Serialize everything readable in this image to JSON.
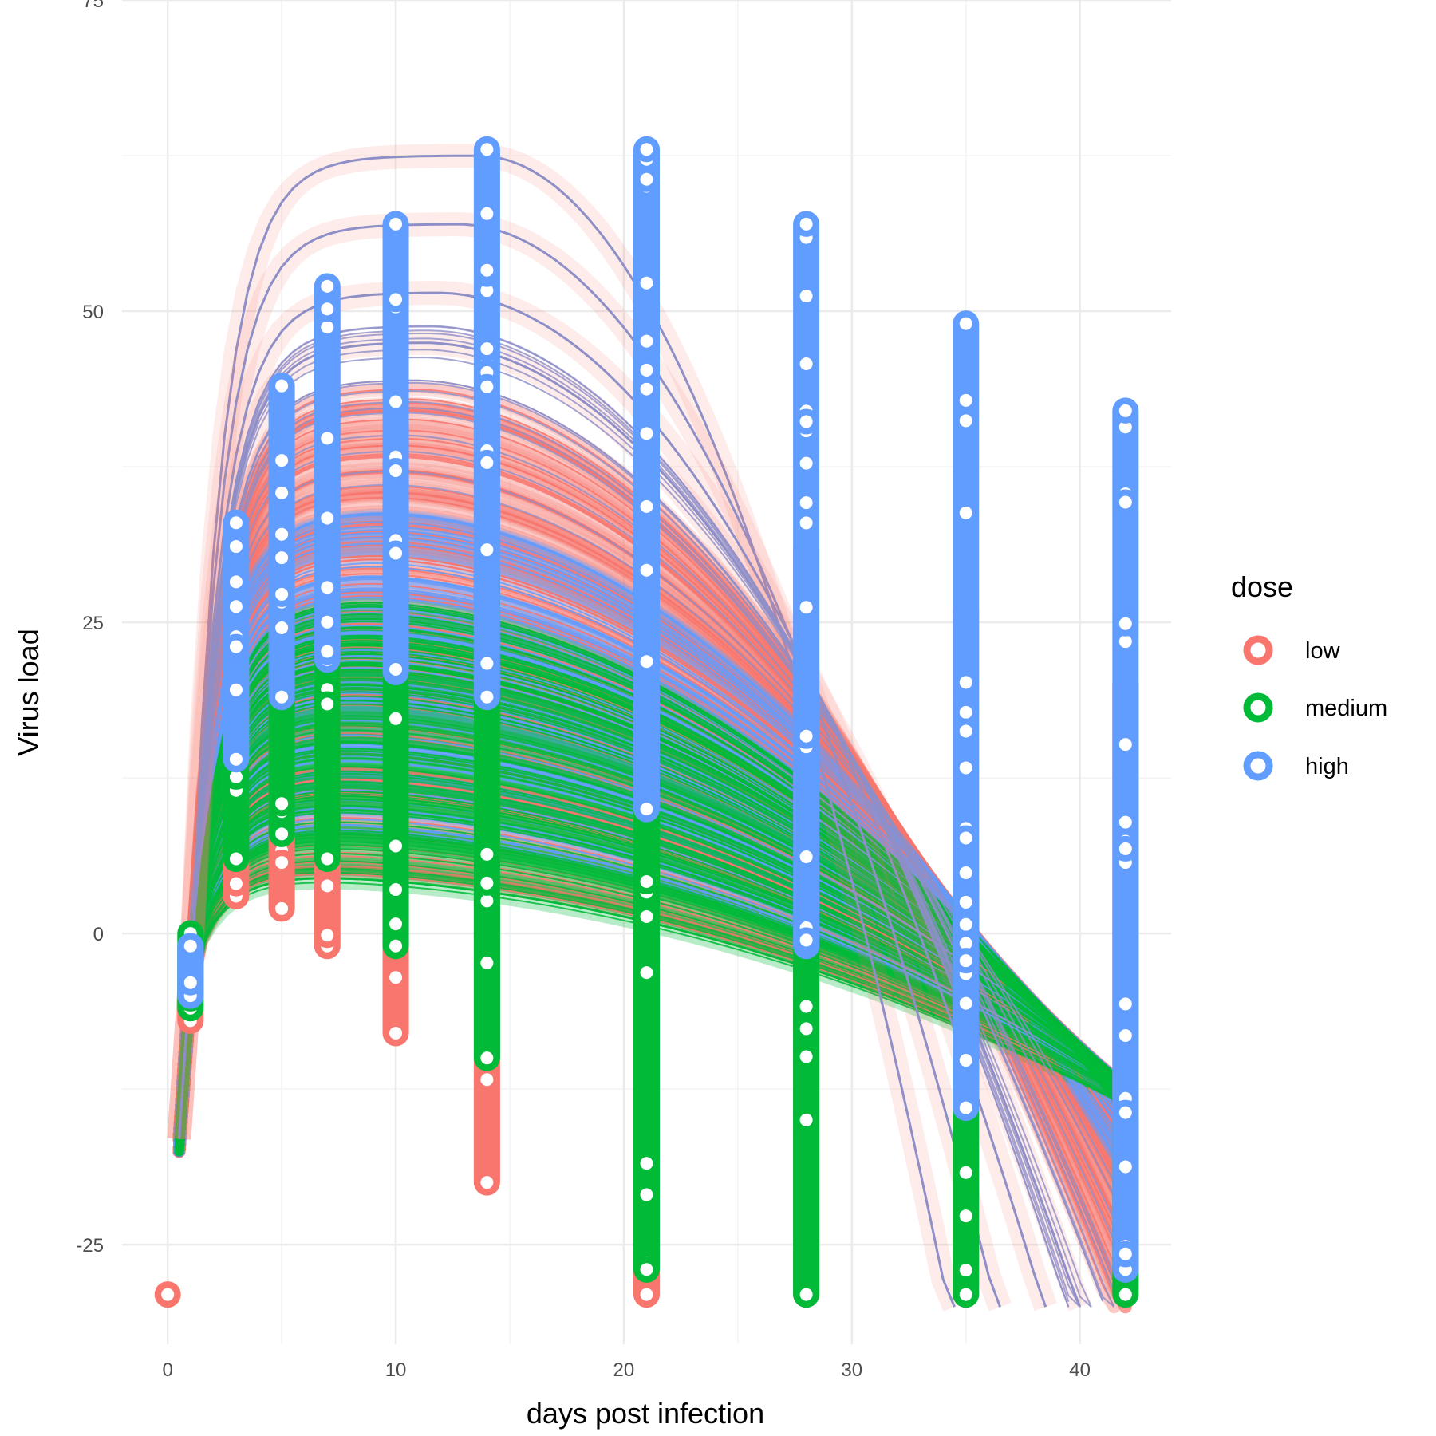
{
  "chart_data": {
    "type": "line",
    "title": "",
    "xlabel": "days post infection",
    "ylabel": "Virus load",
    "xlim": [
      -2,
      44
    ],
    "ylim": [
      -33,
      75
    ],
    "x_ticks": [
      0,
      10,
      20,
      30,
      40
    ],
    "x_tick_labels": [
      "0",
      "10",
      "20",
      "30",
      "40"
    ],
    "y_ticks": [
      -25,
      0,
      25,
      50,
      75
    ],
    "y_tick_labels": [
      "-25",
      "0",
      "25",
      "50",
      "75"
    ],
    "grid": true,
    "legend": {
      "title": "dose",
      "position": "right",
      "entries": [
        "low",
        "medium",
        "high"
      ]
    },
    "colors": {
      "low": "#F8766D",
      "medium": "#00BA38",
      "high": "#619CFF",
      "line_overlay": "#8F8FC8"
    },
    "series": [
      {
        "name": "low",
        "color": "#F8766D",
        "x": [
          0,
          1,
          3,
          5,
          7,
          10,
          14,
          21,
          28,
          35,
          42
        ],
        "y_min": [
          -29,
          -7,
          3,
          2,
          -1,
          -8,
          -20,
          -29,
          -29,
          -29,
          -29
        ],
        "y_max": [
          -29,
          -1,
          21,
          32,
          37,
          40,
          41,
          36,
          31,
          26,
          20
        ],
        "curve_peak_range": [
          5,
          44
        ]
      },
      {
        "name": "medium",
        "color": "#00BA38",
        "x": [
          1,
          3,
          5,
          7,
          10,
          14,
          21,
          28,
          35,
          42
        ],
        "y_min": [
          -6,
          6,
          8,
          6,
          -1,
          -10,
          -27,
          -29,
          -29,
          -29
        ],
        "y_max": [
          0,
          17,
          23,
          27,
          29,
          29,
          20,
          8,
          4,
          -15
        ],
        "curve_peak_range": [
          4,
          27
        ]
      },
      {
        "name": "high",
        "color": "#619CFF",
        "x": [
          1,
          3,
          5,
          7,
          10,
          14,
          21,
          28,
          35,
          42
        ],
        "y_min": [
          -5,
          14,
          19,
          22,
          21,
          19,
          10,
          -1,
          -14,
          -27
        ],
        "y_max": [
          -1,
          33,
          44,
          52,
          57,
          63,
          63,
          57,
          49,
          42
        ],
        "highlighted_trajectories_peak": [
          62.5,
          57,
          51.5,
          47.5
        ]
      }
    ]
  }
}
